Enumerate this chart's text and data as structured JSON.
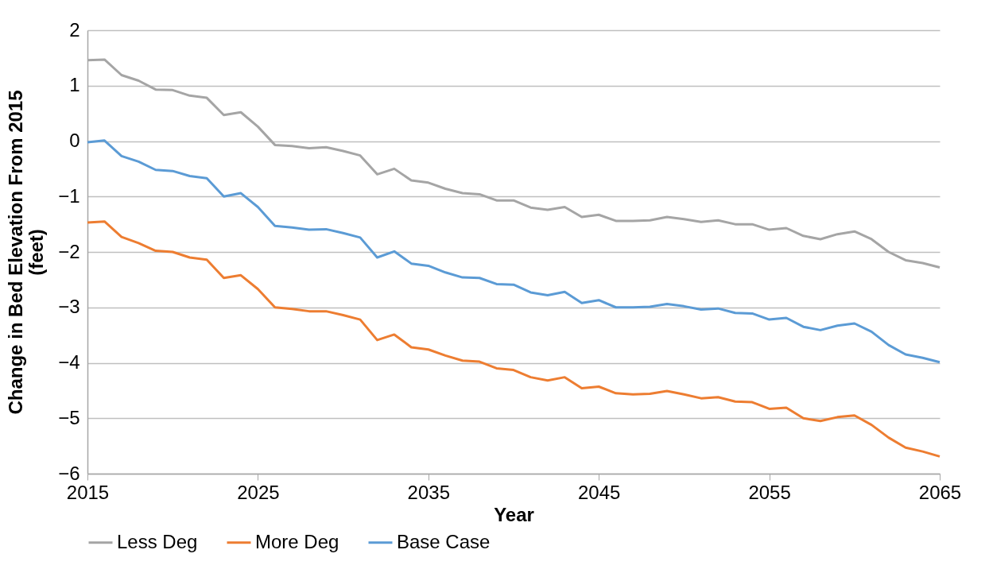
{
  "chart_data": {
    "type": "line",
    "xlabel": "Year",
    "ylabel": "Change in Bed Elevation From 2015\n(feet)",
    "x": [
      2015,
      2016,
      2017,
      2018,
      2019,
      2020,
      2021,
      2022,
      2023,
      2024,
      2025,
      2026,
      2027,
      2028,
      2029,
      2030,
      2031,
      2032,
      2033,
      2034,
      2035,
      2036,
      2037,
      2038,
      2039,
      2040,
      2041,
      2042,
      2043,
      2044,
      2045,
      2046,
      2047,
      2048,
      2049,
      2050,
      2051,
      2052,
      2053,
      2054,
      2055,
      2056,
      2057,
      2058,
      2059,
      2060,
      2061,
      2062,
      2063,
      2064,
      2065
    ],
    "series": [
      {
        "name": "Less Deg",
        "color": "#a5a5a5",
        "values": [
          1.46,
          1.47,
          1.19,
          1.09,
          0.93,
          0.92,
          0.82,
          0.78,
          0.47,
          0.52,
          0.26,
          -0.07,
          -0.09,
          -0.13,
          -0.11,
          -0.18,
          -0.26,
          -0.6,
          -0.5,
          -0.71,
          -0.75,
          -0.86,
          -0.94,
          -0.96,
          -1.07,
          -1.07,
          -1.2,
          -1.24,
          -1.19,
          -1.37,
          -1.33,
          -1.44,
          -1.44,
          -1.43,
          -1.37,
          -1.41,
          -1.46,
          -1.43,
          -1.5,
          -1.5,
          -1.6,
          -1.57,
          -1.71,
          -1.77,
          -1.68,
          -1.63,
          -1.77,
          -2.0,
          -2.15,
          -2.2,
          -2.28
        ]
      },
      {
        "name": "More Deg",
        "color": "#ed7d31",
        "values": [
          -1.47,
          -1.45,
          -1.73,
          -1.84,
          -1.98,
          -2.0,
          -2.1,
          -2.14,
          -2.47,
          -2.42,
          -2.67,
          -3.0,
          -3.03,
          -3.07,
          -3.07,
          -3.14,
          -3.22,
          -3.59,
          -3.49,
          -3.72,
          -3.76,
          -3.87,
          -3.96,
          -3.98,
          -4.1,
          -4.13,
          -4.26,
          -4.32,
          -4.26,
          -4.46,
          -4.43,
          -4.55,
          -4.57,
          -4.56,
          -4.51,
          -4.57,
          -4.64,
          -4.62,
          -4.7,
          -4.71,
          -4.83,
          -4.81,
          -5.0,
          -5.05,
          -4.98,
          -4.95,
          -5.12,
          -5.35,
          -5.53,
          -5.6,
          -5.69
        ]
      },
      {
        "name": "Base Case",
        "color": "#5b9bd5",
        "values": [
          -0.02,
          0.01,
          -0.27,
          -0.37,
          -0.52,
          -0.54,
          -0.63,
          -0.67,
          -1.0,
          -0.94,
          -1.19,
          -1.53,
          -1.56,
          -1.6,
          -1.59,
          -1.66,
          -1.74,
          -2.1,
          -1.99,
          -2.21,
          -2.25,
          -2.37,
          -2.46,
          -2.47,
          -2.58,
          -2.59,
          -2.73,
          -2.78,
          -2.72,
          -2.92,
          -2.87,
          -3.0,
          -3.0,
          -2.99,
          -2.94,
          -2.98,
          -3.04,
          -3.02,
          -3.1,
          -3.11,
          -3.22,
          -3.19,
          -3.35,
          -3.41,
          -3.33,
          -3.29,
          -3.44,
          -3.68,
          -3.85,
          -3.91,
          -3.99
        ]
      }
    ],
    "xlim": [
      2015,
      2065
    ],
    "xticks": [
      2015,
      2025,
      2035,
      2045,
      2055,
      2065
    ],
    "ylim": [
      -6,
      2
    ],
    "yticks": [
      -6,
      -5,
      -4,
      -3,
      -2,
      -1,
      0,
      1,
      2
    ],
    "grid": "y",
    "legend": "bottom",
    "marker": "none",
    "line_style": "solid"
  }
}
